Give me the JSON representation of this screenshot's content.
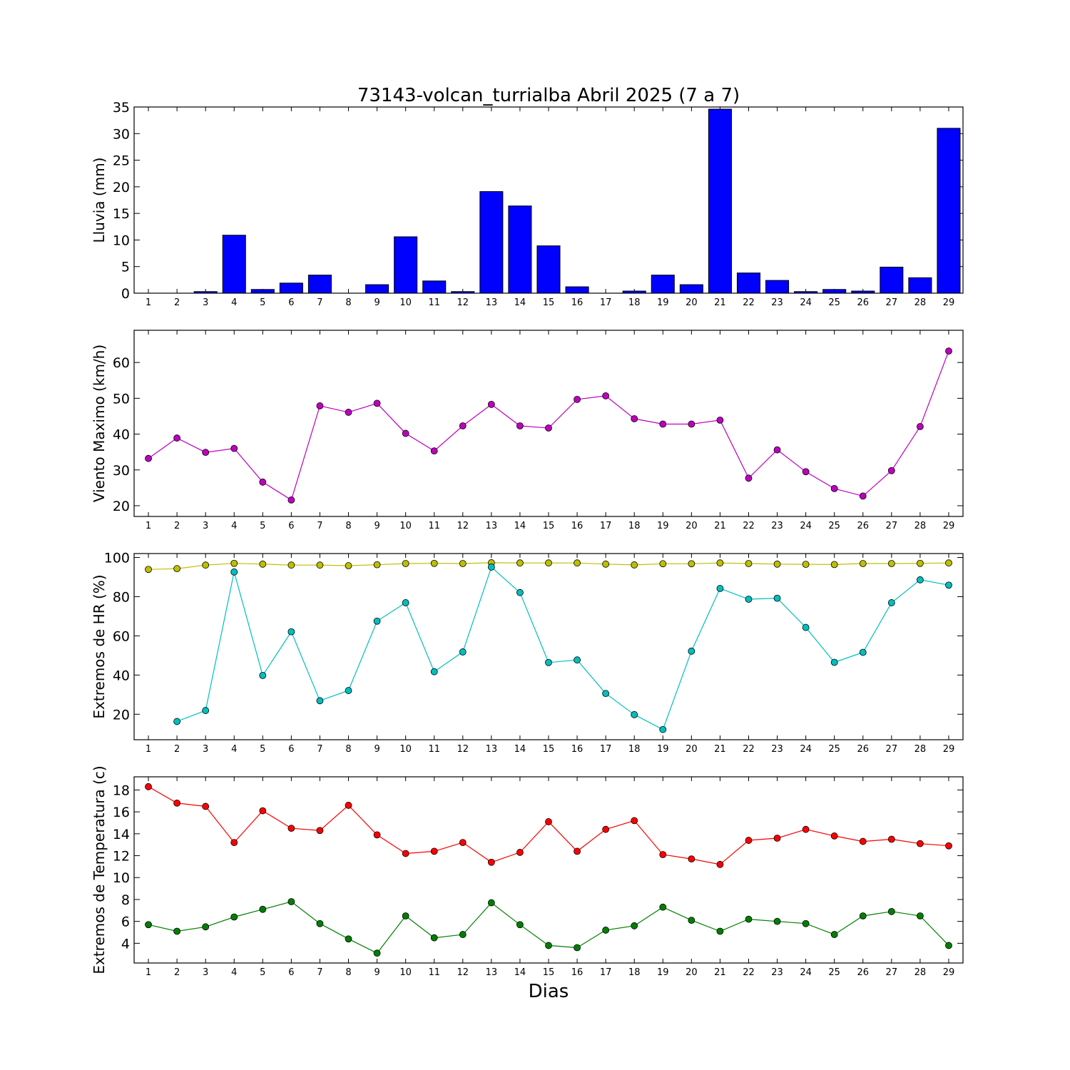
{
  "figure": {
    "title": "73143-volcan_turrialba Abril 2025  (7 a 7)",
    "xlabel": "Dias"
  },
  "chart_data": [
    {
      "id": "rain",
      "type": "bar",
      "ylabel": "Lluvia (mm)",
      "ylim": [
        0,
        35
      ],
      "yticks": [
        0,
        5,
        10,
        15,
        20,
        25,
        30,
        35
      ],
      "categories": [
        1,
        2,
        3,
        4,
        5,
        6,
        7,
        8,
        9,
        10,
        11,
        12,
        13,
        14,
        15,
        16,
        17,
        18,
        19,
        20,
        21,
        22,
        23,
        24,
        25,
        26,
        27,
        28,
        29
      ],
      "series": [
        {
          "color": "#0000ff",
          "values": [
            0,
            0,
            0.3,
            10.9,
            0.7,
            1.9,
            3.4,
            0,
            1.6,
            10.6,
            2.3,
            0.3,
            19.1,
            16.4,
            8.9,
            1.2,
            0,
            0.4,
            3.4,
            1.6,
            34.6,
            3.8,
            2.4,
            0.3,
            0.7,
            0.4,
            4.9,
            2.9,
            31.0
          ]
        }
      ],
      "grid": false
    },
    {
      "id": "wind",
      "type": "line",
      "ylabel": "Viento Maximo (km/h)",
      "ylim": [
        17,
        69
      ],
      "yticks": [
        20,
        30,
        40,
        50,
        60
      ],
      "x": [
        1,
        2,
        3,
        4,
        5,
        6,
        7,
        8,
        9,
        10,
        11,
        12,
        13,
        14,
        15,
        16,
        17,
        18,
        19,
        20,
        21,
        22,
        23,
        24,
        25,
        26,
        27,
        28,
        29
      ],
      "series": [
        {
          "color": "#bf00bf",
          "values": [
            33.2,
            38.9,
            34.9,
            36.0,
            26.6,
            21.6,
            47.9,
            46.1,
            48.6,
            40.2,
            35.3,
            42.3,
            48.3,
            42.3,
            41.7,
            49.7,
            50.7,
            44.3,
            42.8,
            42.8,
            43.9,
            27.7,
            35.6,
            29.5,
            24.8,
            22.7,
            29.8,
            42.1,
            63.2
          ]
        }
      ],
      "grid": false
    },
    {
      "id": "humidity",
      "type": "line",
      "ylabel": "Extremos de HR (%)",
      "ylim": [
        7,
        102
      ],
      "yticks": [
        20,
        40,
        60,
        80,
        100
      ],
      "x": [
        1,
        2,
        3,
        4,
        5,
        6,
        7,
        8,
        9,
        10,
        11,
        12,
        13,
        14,
        15,
        16,
        17,
        18,
        19,
        20,
        21,
        22,
        23,
        24,
        25,
        26,
        27,
        28,
        29
      ],
      "series": [
        {
          "color": "#bfbf00",
          "values": [
            93.9,
            94.3,
            96.1,
            97.0,
            96.6,
            96.1,
            96.1,
            95.8,
            96.3,
            96.9,
            97.0,
            96.9,
            97.3,
            97.2,
            97.2,
            97.2,
            96.6,
            96.2,
            96.8,
            96.8,
            97.2,
            96.9,
            96.6,
            96.5,
            96.4,
            96.9,
            96.9,
            97.0,
            97.2
          ]
        },
        {
          "color": "#00bfbf",
          "values": [
            null,
            16.3,
            21.9,
            92.6,
            39.8,
            62.1,
            26.9,
            32.1,
            67.5,
            76.9,
            41.7,
            51.8,
            95.1,
            82.1,
            46.4,
            47.7,
            30.6,
            19.8,
            12.2,
            52.2,
            84.2,
            78.7,
            79.2,
            64.3,
            46.5,
            51.6,
            76.9,
            88.6,
            85.9
          ]
        }
      ],
      "grid": false
    },
    {
      "id": "temperature",
      "type": "line",
      "ylabel": "Extremos de Temperatura (c)",
      "ylim": [
        2.2,
        19.2
      ],
      "yticks": [
        4,
        6,
        8,
        10,
        12,
        14,
        16,
        18
      ],
      "x": [
        1,
        2,
        3,
        4,
        5,
        6,
        7,
        8,
        9,
        10,
        11,
        12,
        13,
        14,
        15,
        16,
        17,
        18,
        19,
        20,
        21,
        22,
        23,
        24,
        25,
        26,
        27,
        28,
        29
      ],
      "series": [
        {
          "color": "#ff0000",
          "values": [
            18.3,
            16.8,
            16.5,
            13.2,
            16.1,
            14.5,
            14.3,
            16.6,
            13.9,
            12.2,
            12.4,
            13.2,
            11.4,
            12.3,
            15.1,
            12.4,
            14.4,
            15.2,
            12.1,
            11.7,
            11.2,
            13.4,
            13.6,
            14.4,
            13.8,
            13.3,
            13.5,
            13.1,
            12.9
          ]
        },
        {
          "color": "#007f00",
          "values": [
            5.7,
            5.1,
            5.5,
            6.4,
            7.1,
            7.8,
            5.8,
            4.4,
            3.1,
            6.5,
            4.5,
            4.8,
            7.7,
            5.7,
            3.8,
            3.6,
            5.2,
            5.6,
            7.3,
            6.1,
            5.1,
            6.2,
            6.0,
            5.8,
            4.8,
            6.5,
            6.9,
            6.5,
            3.8
          ]
        }
      ],
      "grid": false
    }
  ]
}
